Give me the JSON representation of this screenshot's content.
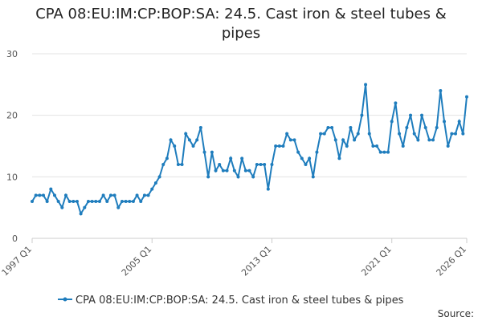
{
  "chart_data": {
    "type": "line",
    "title": "CPA 08:EU:IM:CP:BOP:SA: 24.5. Cast iron & steel tubes & pipes",
    "categories": [
      "1997 Q1",
      null,
      null,
      null,
      null,
      null,
      null,
      null,
      null,
      null,
      null,
      null,
      null,
      null,
      null,
      null,
      null,
      null,
      null,
      null,
      null,
      null,
      null,
      null,
      null,
      null,
      null,
      null,
      null,
      null,
      null,
      null,
      "2005 Q1",
      null,
      null,
      null,
      null,
      null,
      null,
      null,
      null,
      null,
      null,
      null,
      null,
      null,
      null,
      null,
      null,
      null,
      null,
      null,
      null,
      null,
      null,
      null,
      null,
      null,
      null,
      null,
      null,
      null,
      null,
      null,
      "2013 Q1",
      null,
      null,
      null,
      null,
      null,
      null,
      null,
      null,
      null,
      null,
      null,
      null,
      null,
      null,
      null,
      null,
      null,
      null,
      null,
      null,
      null,
      null,
      null,
      null,
      null,
      null,
      null,
      null,
      null,
      null,
      null,
      "2021 Q1",
      null,
      null,
      null,
      null,
      null,
      null,
      null,
      null,
      null,
      null,
      null,
      null,
      null,
      null,
      null,
      null,
      null,
      null,
      null,
      "2026 Q1"
    ],
    "series": [
      {
        "name": "CPA 08:EU:IM:CP:BOP:SA: 24.5. Cast iron & steel tubes & pipes",
        "color": "#1f7dbd",
        "values": [
          6,
          7,
          7,
          7,
          6,
          8,
          7,
          6,
          5,
          7,
          6,
          6,
          6,
          4,
          5,
          6,
          6,
          6,
          6,
          7,
          6,
          7,
          7,
          5,
          6,
          6,
          6,
          6,
          7,
          6,
          7,
          7,
          8,
          9,
          10,
          12,
          13,
          16,
          15,
          12,
          12,
          17,
          16,
          15,
          16,
          18,
          14,
          10,
          14,
          11,
          12,
          11,
          11,
          13,
          11,
          10,
          13,
          11,
          11,
          10,
          12,
          12,
          12,
          8,
          12,
          15,
          15,
          15,
          17,
          16,
          16,
          14,
          13,
          12,
          13,
          10,
          14,
          17,
          17,
          18,
          18,
          16,
          13,
          16,
          15,
          18,
          16,
          17,
          20,
          25,
          17,
          15,
          15,
          14,
          14,
          14,
          19,
          22,
          17,
          15,
          18,
          20,
          17,
          16,
          20,
          18,
          16,
          16,
          18,
          24,
          19,
          15,
          17,
          17,
          19,
          17,
          23
        ]
      }
    ],
    "ylim": [
      0,
      30
    ],
    "yticks": [
      0,
      10,
      20,
      30
    ],
    "grid": true,
    "legend": "bottom",
    "source": "Source:"
  }
}
